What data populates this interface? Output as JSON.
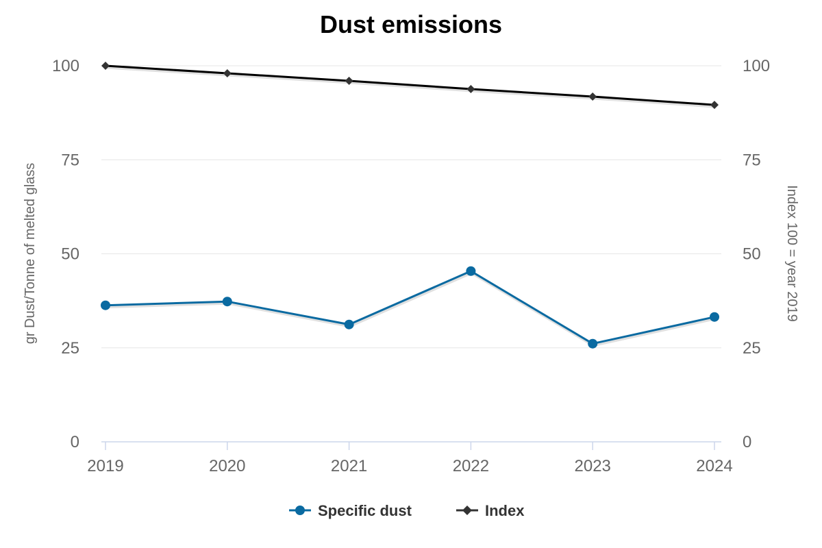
{
  "chart_data": {
    "type": "line",
    "title": "Dust emissions",
    "categories": [
      "2019",
      "2020",
      "2021",
      "2022",
      "2023",
      "2024"
    ],
    "y_left": {
      "label": "gr Dust/Tonne of melted glass",
      "range": [
        0,
        100
      ],
      "ticks": [
        "0",
        "25",
        "50",
        "75",
        "100"
      ]
    },
    "y_right": {
      "label": "Index 100 = year 2019",
      "range": [
        0,
        100
      ],
      "ticks": [
        "0",
        "25",
        "50",
        "75",
        "100"
      ]
    },
    "grid": true,
    "legend_position": "bottom-center",
    "series": [
      {
        "name": "Specific dust",
        "axis": "left",
        "color": "#0a6aa1",
        "marker": "circle",
        "values": [
          36.3,
          37.3,
          31.2,
          45.4,
          26.1,
          33.2
        ]
      },
      {
        "name": "Index",
        "axis": "right",
        "color": "#000000",
        "marker": "diamond",
        "values": [
          100,
          98,
          96,
          93.8,
          91.8,
          89.6
        ]
      }
    ]
  }
}
